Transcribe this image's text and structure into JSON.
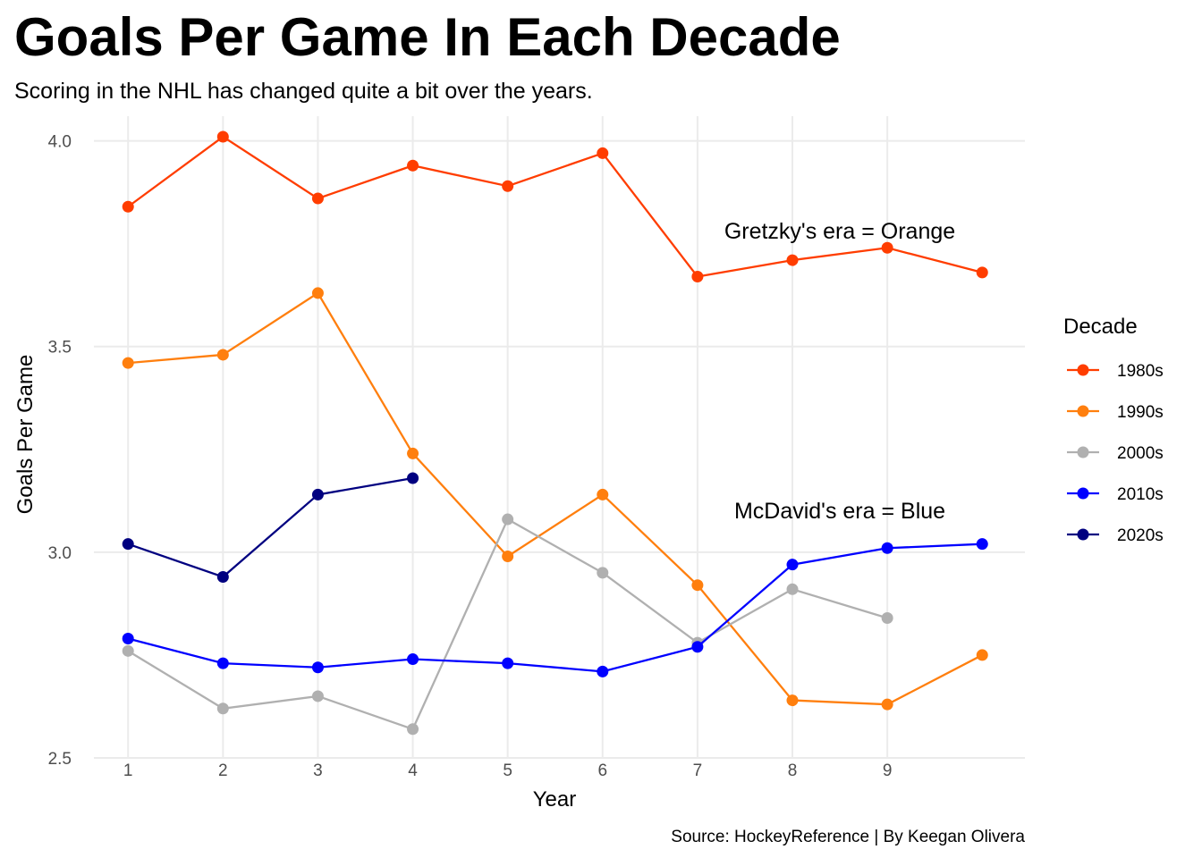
{
  "title": "Goals Per Game In Each Decade",
  "subtitle": "Scoring in the NHL has changed quite a bit over the years.",
  "caption": "Source: HockeyReference | By Keegan Olivera",
  "annotations": {
    "gretzky": "Gretzky's era = Orange",
    "mcdavid": "McDavid's era = Blue"
  },
  "chart_data": {
    "type": "line",
    "title": "Goals Per Game In Each Decade",
    "subtitle": "Scoring in the NHL has changed quite a bit over the years.",
    "xlabel": "Year",
    "ylabel": "Goals Per Game",
    "x": [
      1,
      2,
      3,
      4,
      5,
      6,
      7,
      8,
      9,
      10
    ],
    "x_tick_labels": [
      "1",
      "2",
      "3",
      "4",
      "5",
      "6",
      "7",
      "8",
      "9"
    ],
    "xlim": [
      0.64,
      10.45
    ],
    "y_ticks": [
      "2.5",
      "3.0",
      "3.5",
      "4.0"
    ],
    "ylim": [
      2.5,
      4.06
    ],
    "grid": true,
    "legend_title": "Decade",
    "legend_position": "right",
    "series": [
      {
        "name": "1980s",
        "color": "#FF3D00",
        "values": [
          3.84,
          4.01,
          3.86,
          3.94,
          3.89,
          3.97,
          3.67,
          3.71,
          3.74,
          3.68
        ]
      },
      {
        "name": "1990s",
        "color": "#FF7F0E",
        "values": [
          3.46,
          3.48,
          3.63,
          3.24,
          2.99,
          3.14,
          2.92,
          2.64,
          2.63,
          2.75
        ]
      },
      {
        "name": "2000s",
        "color": "#B0B0B0",
        "values": [
          2.76,
          2.62,
          2.65,
          2.57,
          3.08,
          2.95,
          2.78,
          2.91,
          2.84,
          null
        ]
      },
      {
        "name": "2010s",
        "color": "#0000FF",
        "values": [
          2.79,
          2.73,
          2.72,
          2.74,
          2.73,
          2.71,
          2.77,
          2.97,
          3.01,
          3.02
        ]
      },
      {
        "name": "2020s",
        "color": "#000080",
        "values": [
          3.02,
          2.94,
          3.14,
          3.18,
          null,
          null,
          null,
          null,
          null,
          null
        ]
      }
    ]
  }
}
